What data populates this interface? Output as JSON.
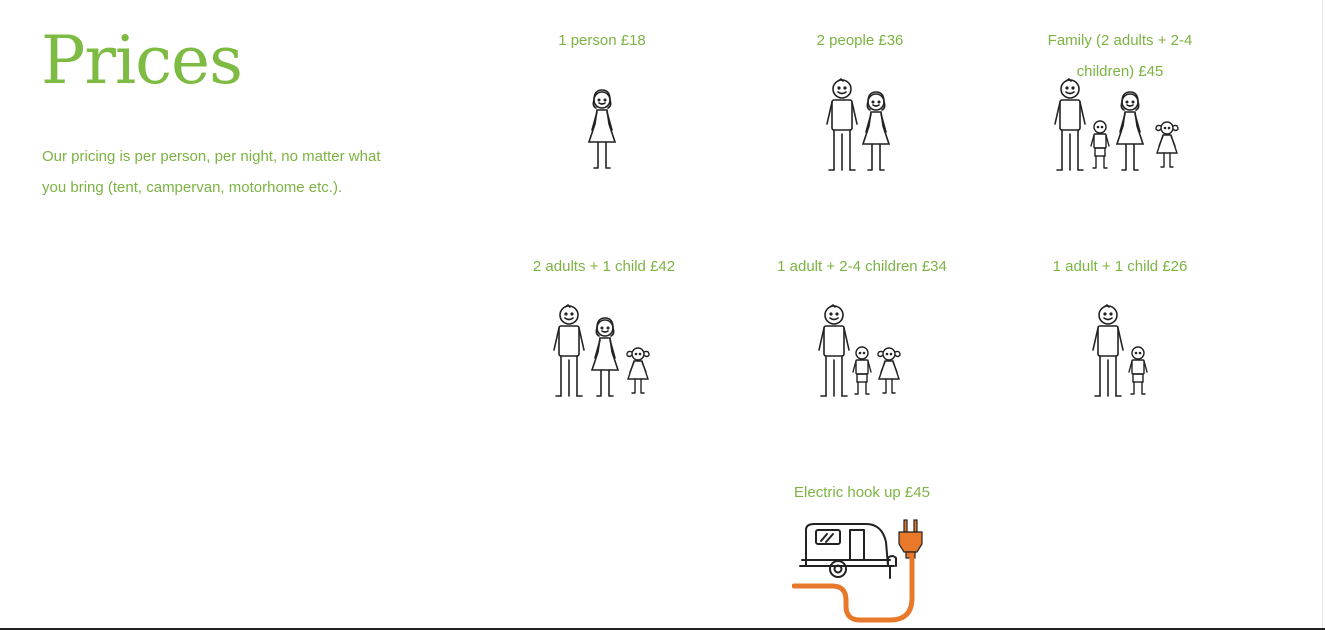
{
  "page": {
    "title": "Prices",
    "intro": "Our pricing is per person, per night, no matter what you bring (tent, campervan, motorhome etc.)."
  },
  "colors": {
    "accent": "#7cb342",
    "plug": "#e8782a",
    "figure": "#222222"
  },
  "prices": [
    {
      "label": "1 person £18",
      "figures": [
        "woman"
      ]
    },
    {
      "label": "2 people £36",
      "figures": [
        "man",
        "woman"
      ]
    },
    {
      "label": "Family (2 adults + 2-4 children) £45",
      "figures": [
        "man",
        "boy",
        "woman",
        "girl"
      ]
    },
    {
      "label": "2 adults + 1 child £42",
      "figures": [
        "man",
        "woman",
        "girl"
      ]
    },
    {
      "label": "1 adult + 2-4 children £34",
      "figures": [
        "man",
        "boy",
        "girl"
      ]
    },
    {
      "label": "1 adult + 1 child £26",
      "figures": [
        "man",
        "boy"
      ]
    },
    {
      "label": "Electric hook up £45",
      "icon": "caravan-electric-hookup-icon"
    }
  ]
}
